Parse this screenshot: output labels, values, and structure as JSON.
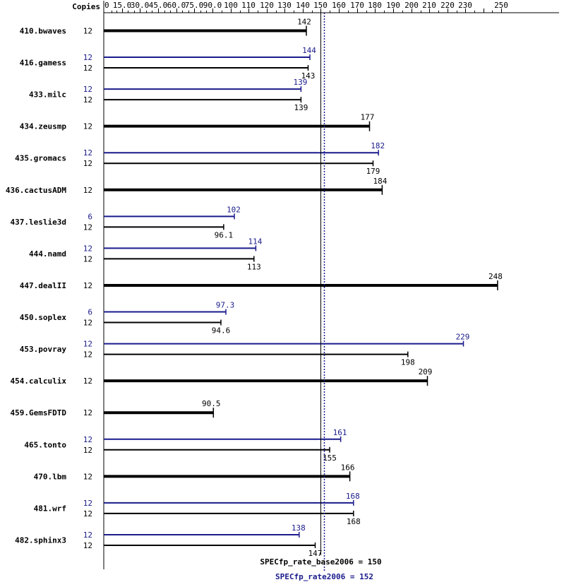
{
  "chart_data": {
    "type": "bar",
    "orientation": "horizontal",
    "copies_header": "Copies",
    "axis_ticks": [
      "0",
      "15.0",
      "30.0",
      "45.0",
      "60.0",
      "75.0",
      "90.0",
      "100",
      "110",
      "120",
      "130",
      "140",
      "150",
      "160",
      "170",
      "180",
      "190",
      "200",
      "210",
      "220",
      "230",
      "250"
    ],
    "axis_tick_values": [
      0,
      15,
      30,
      45,
      60,
      75,
      90,
      100,
      110,
      120,
      130,
      140,
      150,
      160,
      170,
      180,
      190,
      200,
      210,
      220,
      230,
      250
    ],
    "xlim": [
      0,
      250
    ],
    "colors": {
      "base": "#000000",
      "peak": "#1a1a8c"
    },
    "benchmarks": [
      {
        "name": "410.bwaves",
        "base_copies": "12",
        "base": 142,
        "base_label": "142"
      },
      {
        "name": "416.gamess",
        "peak_copies": "12",
        "peak": 144,
        "peak_label": "144",
        "base_copies": "12",
        "base": 143,
        "base_label": "143"
      },
      {
        "name": "433.milc",
        "peak_copies": "12",
        "peak": 139,
        "peak_label": "139",
        "base_copies": "12",
        "base": 139,
        "base_label": "139"
      },
      {
        "name": "434.zeusmp",
        "base_copies": "12",
        "base": 177,
        "base_label": "177"
      },
      {
        "name": "435.gromacs",
        "peak_copies": "12",
        "peak": 182,
        "peak_label": "182",
        "base_copies": "12",
        "base": 179,
        "base_label": "179"
      },
      {
        "name": "436.cactusADM",
        "base_copies": "12",
        "base": 184,
        "base_label": "184"
      },
      {
        "name": "437.leslie3d",
        "peak_copies": "6",
        "peak": 102,
        "peak_label": "102",
        "base_copies": "12",
        "base": 96.1,
        "base_label": "96.1"
      },
      {
        "name": "444.namd",
        "peak_copies": "12",
        "peak": 114,
        "peak_label": "114",
        "base_copies": "12",
        "base": 113,
        "base_label": "113"
      },
      {
        "name": "447.dealII",
        "base_copies": "12",
        "base": 248,
        "base_label": "248"
      },
      {
        "name": "450.soplex",
        "peak_copies": "6",
        "peak": 97.3,
        "peak_label": "97.3",
        "base_copies": "12",
        "base": 94.6,
        "base_label": "94.6"
      },
      {
        "name": "453.povray",
        "peak_copies": "12",
        "peak": 229,
        "peak_label": "229",
        "base_copies": "12",
        "base": 198,
        "base_label": "198"
      },
      {
        "name": "454.calculix",
        "base_copies": "12",
        "base": 209,
        "base_label": "209"
      },
      {
        "name": "459.GemsFDTD",
        "base_copies": "12",
        "base": 90.5,
        "base_label": "90.5"
      },
      {
        "name": "465.tonto",
        "peak_copies": "12",
        "peak": 161,
        "peak_label": "161",
        "base_copies": "12",
        "base": 155,
        "base_label": "155"
      },
      {
        "name": "470.lbm",
        "base_copies": "12",
        "base": 166,
        "base_label": "166"
      },
      {
        "name": "481.wrf",
        "peak_copies": "12",
        "peak": 168,
        "peak_label": "168",
        "base_copies": "12",
        "base": 168,
        "base_label": "168"
      },
      {
        "name": "482.sphinx3",
        "peak_copies": "12",
        "peak": 138,
        "peak_label": "138",
        "base_copies": "12",
        "base": 147,
        "base_label": "147"
      }
    ],
    "base_metric": {
      "label": "SPECfp_rate_base2006 = 150",
      "value": 150
    },
    "peak_metric": {
      "label": "SPECfp_rate2006 = 152",
      "value": 152
    }
  }
}
